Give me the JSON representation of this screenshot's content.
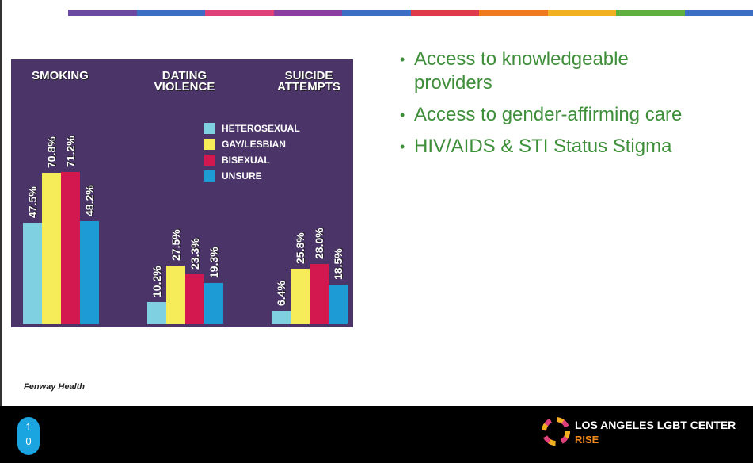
{
  "slide": {
    "bullets": [
      "Access to knowledgeable providers",
      "Access to gender-affirming care",
      "HIV/AIDS & STI Status Stigma"
    ],
    "source": "Fenway Health",
    "page_number": "10",
    "logo": {
      "title": "LOS ANGELES LGBT CENTER",
      "subtitle": "RISE"
    }
  },
  "chart_data": {
    "type": "bar",
    "categories": [
      "SMOKING",
      "DATING VIOLENCE",
      "SUICIDE ATTEMPTS"
    ],
    "series": [
      {
        "name": "HETEROSEXUAL",
        "color": "#7fd0e0",
        "values": [
          47.5,
          10.2,
          6.4
        ],
        "value_labels": [
          "47.5%",
          "10.2%",
          "6.4%"
        ]
      },
      {
        "name": "GAY/LESBIAN",
        "color": "#f6ec5a",
        "values": [
          70.8,
          27.5,
          25.8
        ],
        "value_labels": [
          "70.8%",
          "27.5%",
          "25.8%"
        ]
      },
      {
        "name": "BISEXUAL",
        "color": "#d3174f",
        "values": [
          71.2,
          23.3,
          28.0
        ],
        "value_labels": [
          "71.2%",
          "23.3%",
          "28.0%"
        ]
      },
      {
        "name": "UNSURE",
        "color": "#1d9bd4",
        "values": [
          48.2,
          19.3,
          18.5
        ],
        "value_labels": [
          "48.2%",
          "19.3%",
          "18.5%"
        ]
      }
    ]
  }
}
